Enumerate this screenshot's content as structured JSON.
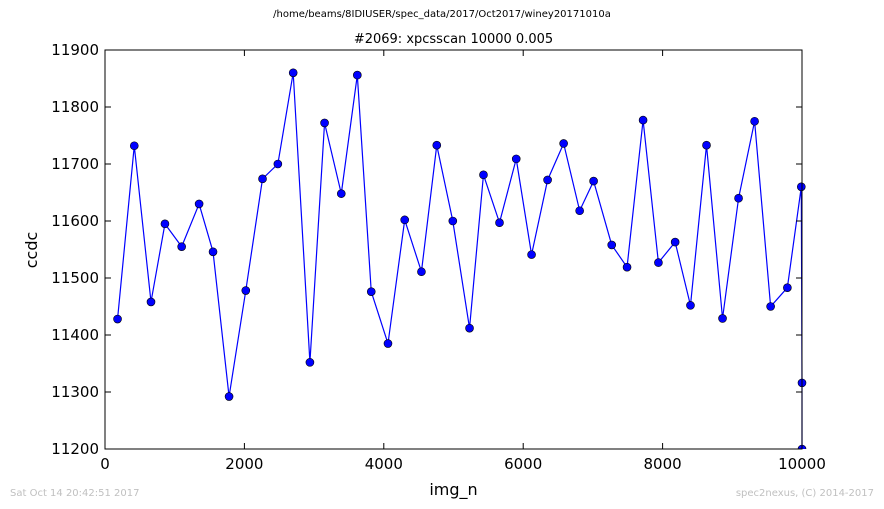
{
  "supertitle": "/home/beams/8IDIUSER/spec_data/2017/Oct2017/winey20171010a",
  "footer": {
    "timestamp": "Sat Oct 14 20:42:51 2017",
    "credit": "spec2nexus, (C) 2014-2017"
  },
  "chart_data": {
    "type": "line",
    "title": "#2069: xpcsscan 10000 0.005",
    "xlabel": "img_n",
    "ylabel": "ccdc",
    "xlim": [
      0,
      10000
    ],
    "ylim": [
      11200,
      11900
    ],
    "xticks": [
      0,
      2000,
      4000,
      6000,
      8000,
      10000
    ],
    "yticks": [
      11200,
      11300,
      11400,
      11500,
      11600,
      11700,
      11800,
      11900
    ],
    "grid": false,
    "legend": "none",
    "color": "#0000ff",
    "marker": "circle",
    "series": [
      {
        "x": [
          180,
          420,
          660,
          860,
          1100,
          1350,
          1550,
          1780,
          2020,
          2260,
          2480,
          2700,
          2940,
          3150,
          3390,
          3620,
          3820,
          4060,
          4300,
          4540,
          4760,
          4990,
          5230,
          5430,
          5660,
          5900,
          6120,
          6350,
          6580,
          6810,
          7010,
          7270,
          7490,
          7720,
          7940,
          8180,
          8400,
          8630,
          8860,
          9090,
          9320,
          9550,
          9790,
          9990,
          10000,
          10000
        ],
        "y": [
          11428,
          11732,
          11458,
          11595,
          11555,
          11630,
          11546,
          11292,
          11478,
          11674,
          11700,
          11860,
          11352,
          11772,
          11648,
          11856,
          11476,
          11385,
          11602,
          11511,
          11733,
          11600,
          11412,
          11681,
          11597,
          11709,
          11541,
          11672,
          11736,
          11618,
          11670,
          11558,
          11519,
          11777,
          11527,
          11563,
          11452,
          11733,
          11429,
          11640,
          11775,
          11450,
          11483,
          11660,
          11316,
          11200
        ]
      }
    ]
  }
}
